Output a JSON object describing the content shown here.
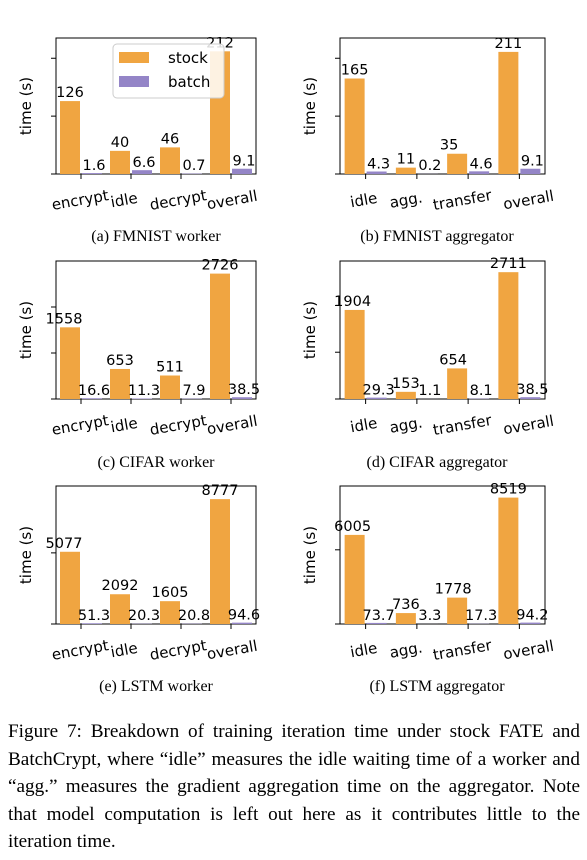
{
  "legend": {
    "stock": "stock",
    "batch": "batch"
  },
  "colors": {
    "stock": "#f0a541",
    "batch": "#9485c7"
  },
  "chart_data": [
    {
      "type": "bar",
      "subcaption": "(a) FMNIST worker",
      "ylabel": "time (s)",
      "categories": [
        "encrypt",
        "idle",
        "decrypt",
        "overall"
      ],
      "series": [
        {
          "name": "stock",
          "values": [
            126,
            40,
            46,
            212
          ],
          "labels": [
            "126",
            "40",
            "46",
            "212"
          ]
        },
        {
          "name": "batch",
          "values": [
            1.6,
            6.6,
            0.7,
            9.1
          ],
          "labels": [
            "1.6",
            "6.6",
            "0.7",
            "9.1"
          ]
        }
      ],
      "ylim": [
        0,
        235
      ],
      "yticks": [
        0,
        100,
        200
      ],
      "legend": "top-center"
    },
    {
      "type": "bar",
      "subcaption": "(b) FMNIST aggregator",
      "ylabel": "time (s)",
      "categories": [
        "idle",
        "agg.",
        "transfer",
        "overall"
      ],
      "series": [
        {
          "name": "stock",
          "values": [
            165,
            11,
            35,
            211
          ],
          "labels": [
            "165",
            "11",
            "35",
            "211"
          ]
        },
        {
          "name": "batch",
          "values": [
            4.3,
            0.2,
            4.6,
            9.1
          ],
          "labels": [
            "4.3",
            "0.2",
            "4.6",
            "9.1"
          ]
        }
      ],
      "ylim": [
        0,
        235
      ],
      "yticks": [
        0,
        100,
        200
      ]
    },
    {
      "type": "bar",
      "subcaption": "(c) CIFAR worker",
      "ylabel": "time (s)",
      "categories": [
        "encrypt",
        "idle",
        "decrypt",
        "overall"
      ],
      "series": [
        {
          "name": "stock",
          "values": [
            1558,
            653,
            511,
            2726
          ],
          "labels": [
            "1558",
            "653",
            "511",
            "2726"
          ]
        },
        {
          "name": "batch",
          "values": [
            16.6,
            11.3,
            7.9,
            38.5
          ],
          "labels": [
            "16.6",
            "11.3",
            "7.9",
            "38.5"
          ]
        }
      ],
      "ylim": [
        0,
        3000
      ],
      "yticks": [
        0,
        1000,
        2000
      ]
    },
    {
      "type": "bar",
      "subcaption": "(d) CIFAR aggregator",
      "ylabel": "time (s)",
      "categories": [
        "idle",
        "agg.",
        "transfer",
        "overall"
      ],
      "series": [
        {
          "name": "stock",
          "values": [
            1904,
            153,
            654,
            2711
          ],
          "labels": [
            "1904",
            "153",
            "654",
            "2711"
          ]
        },
        {
          "name": "batch",
          "values": [
            29.3,
            1.1,
            8.1,
            38.5
          ],
          "labels": [
            "29.3",
            "1.1",
            "8.1",
            "38.5"
          ]
        }
      ],
      "ylim": [
        0,
        2950
      ],
      "yticks": [
        0,
        1000,
        2000
      ]
    },
    {
      "type": "bar",
      "subcaption": "(e) LSTM worker",
      "ylabel": "time (s)",
      "categories": [
        "encrypt",
        "idle",
        "decrypt",
        "overall"
      ],
      "series": [
        {
          "name": "stock",
          "values": [
            5077,
            2092,
            1605,
            8777
          ],
          "labels": [
            "5077",
            "2092",
            "1605",
            "8777"
          ]
        },
        {
          "name": "batch",
          "values": [
            51.3,
            20.3,
            20.8,
            94.6
          ],
          "labels": [
            "51.3",
            "20.3",
            "20.8",
            "94.6"
          ]
        }
      ],
      "ylim": [
        0,
        9700
      ],
      "yticks": [
        0,
        5000
      ]
    },
    {
      "type": "bar",
      "subcaption": "(f) LSTM aggregator",
      "ylabel": "time (s)",
      "categories": [
        "idle",
        "agg.",
        "transfer",
        "overall"
      ],
      "series": [
        {
          "name": "stock",
          "values": [
            6005,
            736,
            1778,
            8519
          ],
          "labels": [
            "6005",
            "736",
            "1778",
            "8519"
          ]
        },
        {
          "name": "batch",
          "values": [
            73.7,
            3.3,
            17.3,
            94.2
          ],
          "labels": [
            "73.7",
            "3.3",
            "17.3",
            "94.2"
          ]
        }
      ],
      "ylim": [
        0,
        9300
      ],
      "yticks": [
        0,
        5000
      ]
    }
  ],
  "caption": "Figure 7: Breakdown of training iteration time under stock FATE and BatchCrypt, where “idle” measures the idle waiting time of a worker and “agg.” measures the gradient aggregation time on the aggregator. Note that model computation is left out here as it contributes little to the iteration time."
}
